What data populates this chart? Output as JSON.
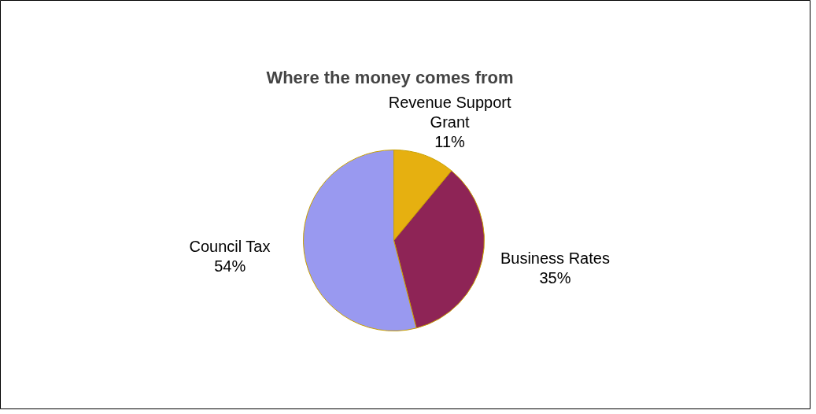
{
  "chart_data": {
    "type": "pie",
    "title": "Where the money comes from",
    "categories": [
      "Revenue Support Grant",
      "Business Rates",
      "Council Tax"
    ],
    "values": [
      11,
      35,
      54
    ],
    "value_labels": [
      "11%",
      "35%",
      "54%"
    ],
    "colors": [
      "#e6b010",
      "#8e2456",
      "#9999f0"
    ]
  }
}
